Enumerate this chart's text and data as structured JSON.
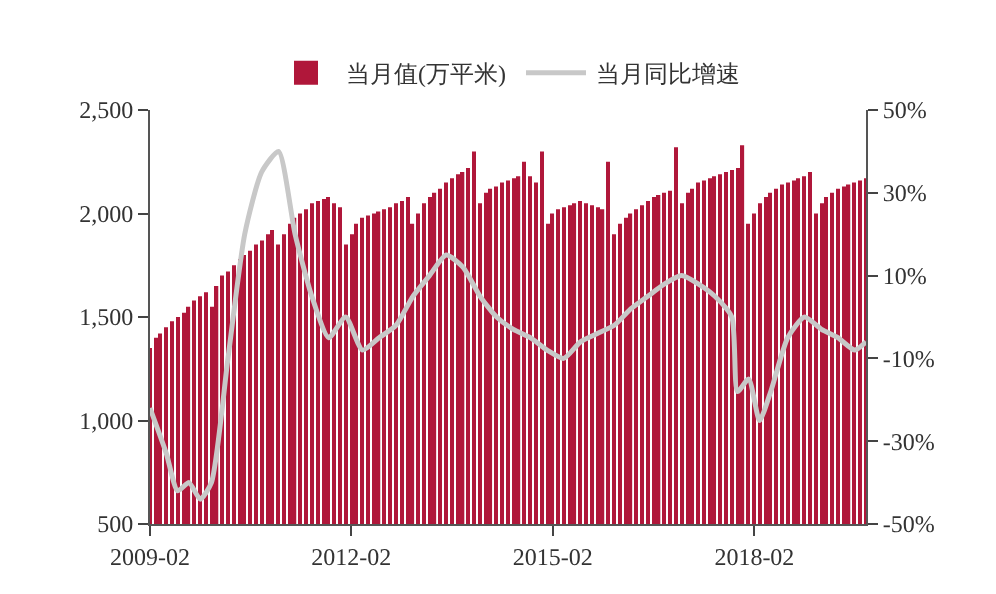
{
  "chart_data": {
    "type": "bar",
    "legend": "top",
    "x": [
      "2009-02",
      "2009-03",
      "2009-04",
      "2009-05",
      "2009-06",
      "2009-07",
      "2009-08",
      "2009-09",
      "2009-10",
      "2009-11",
      "2009-12",
      "2010-01",
      "2010-02",
      "2010-03",
      "2010-04",
      "2010-05",
      "2010-06",
      "2010-07",
      "2010-08",
      "2010-09",
      "2010-10",
      "2010-11",
      "2010-12",
      "2011-01",
      "2011-02",
      "2011-03",
      "2011-04",
      "2011-05",
      "2011-06",
      "2011-07",
      "2011-08",
      "2011-09",
      "2011-10",
      "2011-11",
      "2011-12",
      "2012-01",
      "2012-02",
      "2012-03",
      "2012-04",
      "2012-05",
      "2012-06",
      "2012-07",
      "2012-08",
      "2012-09",
      "2012-10",
      "2012-11",
      "2012-12",
      "2013-01",
      "2013-02",
      "2013-03",
      "2013-04",
      "2013-05",
      "2013-06",
      "2013-07",
      "2013-08",
      "2013-09",
      "2013-10",
      "2013-11",
      "2013-12",
      "2014-01",
      "2014-02",
      "2014-03",
      "2014-04",
      "2014-05",
      "2014-06",
      "2014-07",
      "2014-08",
      "2014-09",
      "2014-10",
      "2014-11",
      "2014-12",
      "2015-01",
      "2015-02",
      "2015-03",
      "2015-04",
      "2015-05",
      "2015-06",
      "2015-07",
      "2015-08",
      "2015-09",
      "2015-10",
      "2015-11",
      "2015-12",
      "2016-01",
      "2016-02",
      "2016-03",
      "2016-04",
      "2016-05",
      "2016-06",
      "2016-07",
      "2016-08",
      "2016-09",
      "2016-10",
      "2016-11",
      "2016-12",
      "2017-01",
      "2017-02",
      "2017-03",
      "2017-04",
      "2017-05",
      "2017-06",
      "2017-07",
      "2017-08",
      "2017-09",
      "2017-10",
      "2017-11",
      "2017-12",
      "2018-01",
      "2018-02",
      "2018-03",
      "2018-04",
      "2018-05",
      "2018-06",
      "2018-07",
      "2018-08",
      "2018-09",
      "2018-10",
      "2018-11",
      "2018-12",
      "2019-01",
      "2019-02",
      "2019-03",
      "2019-04",
      "2019-05",
      "2019-06",
      "2019-07",
      "2019-08",
      "2019-09",
      "2019-10"
    ],
    "xlim": [
      "2009-02",
      "2019-10"
    ],
    "xticks": [
      {
        "value": "2009-02",
        "label": "2009-02"
      },
      {
        "value": "2012-02",
        "label": "2012-02"
      },
      {
        "value": "2015-02",
        "label": "2015-02"
      },
      {
        "value": "2018-02",
        "label": "2018-02"
      }
    ],
    "ylim": [
      500,
      2500
    ],
    "yticks": [
      {
        "value": 500,
        "label": "500"
      },
      {
        "value": 1000,
        "label": "1,000"
      },
      {
        "value": 1500,
        "label": "1,500"
      },
      {
        "value": 2000,
        "label": "2,000"
      },
      {
        "value": 2500,
        "label": "2,500"
      }
    ],
    "y2lim": [
      -50,
      50
    ],
    "y2ticks": [
      {
        "value": -50,
        "label": "-50%"
      },
      {
        "value": -30,
        "label": "-30%"
      },
      {
        "value": -10,
        "label": "-10%"
      },
      {
        "value": 10,
        "label": "10%"
      },
      {
        "value": 30,
        "label": "30%"
      },
      {
        "value": 50,
        "label": "50%"
      }
    ],
    "series": [
      {
        "name": "当月值(万平米)",
        "color": "#b0173a",
        "values": [
          1350,
          1400,
          1420,
          1450,
          1480,
          1500,
          1520,
          1550,
          1580,
          1600,
          1620,
          1550,
          1650,
          1700,
          1720,
          1750,
          1780,
          1800,
          1820,
          1850,
          1870,
          1900,
          1920,
          1850,
          1900,
          1950,
          1980,
          2000,
          2020,
          2050,
          2060,
          2070,
          2080,
          2050,
          2030,
          1850,
          1900,
          1950,
          1980,
          1990,
          2000,
          2010,
          2020,
          2030,
          2050,
          2060,
          2080,
          1950,
          2000,
          2050,
          2080,
          2100,
          2120,
          2150,
          2170,
          2190,
          2200,
          2220,
          2300,
          2050,
          2100,
          2120,
          2130,
          2150,
          2160,
          2170,
          2180,
          2250,
          2180,
          2150,
          2300,
          1950,
          2000,
          2020,
          2030,
          2040,
          2050,
          2060,
          2050,
          2040,
          2030,
          2020,
          2250,
          1900,
          1950,
          1980,
          2000,
          2020,
          2040,
          2060,
          2080,
          2090,
          2100,
          2110,
          2320,
          2050,
          2100,
          2120,
          2150,
          2160,
          2170,
          2180,
          2190,
          2200,
          2210,
          2220,
          2330,
          1950,
          2000,
          2050,
          2080,
          2100,
          2120,
          2140,
          2150,
          2160,
          2170,
          2180,
          2200,
          2000,
          2050,
          2080,
          2100,
          2120,
          2130,
          2140,
          2150,
          2160,
          2170
        ]
      },
      {
        "name": "当月同比增速",
        "type": "line",
        "axis": "y2",
        "color": "#c8c8c8",
        "x": [
          "2009-02",
          "2009-05",
          "2009-07",
          "2009-09",
          "2009-11",
          "2010-01",
          "2010-04",
          "2010-07",
          "2010-10",
          "2011-01",
          "2011-04",
          "2011-07",
          "2011-10",
          "2012-01",
          "2012-04",
          "2012-07",
          "2012-10",
          "2013-01",
          "2013-04",
          "2013-07",
          "2013-10",
          "2014-01",
          "2014-04",
          "2014-07",
          "2014-10",
          "2015-01",
          "2015-04",
          "2015-07",
          "2015-10",
          "2016-01",
          "2016-04",
          "2016-07",
          "2016-10",
          "2017-01",
          "2017-04",
          "2017-07",
          "2017-10",
          "2017-11",
          "2018-01",
          "2018-03",
          "2018-05",
          "2018-08",
          "2018-11",
          "2019-02",
          "2019-05",
          "2019-08",
          "2019-10"
        ],
        "values": [
          -22,
          -33,
          -42,
          -40,
          -44,
          -40,
          -10,
          20,
          35,
          40,
          20,
          5,
          -5,
          0,
          -8,
          -5,
          -2,
          5,
          10,
          15,
          12,
          5,
          0,
          -3,
          -5,
          -8,
          -10,
          -6,
          -4,
          -2,
          2,
          5,
          8,
          10,
          8,
          5,
          0,
          -18,
          -15,
          -25,
          -18,
          -5,
          0,
          -3,
          -5,
          -8,
          -6
        ]
      }
    ]
  }
}
